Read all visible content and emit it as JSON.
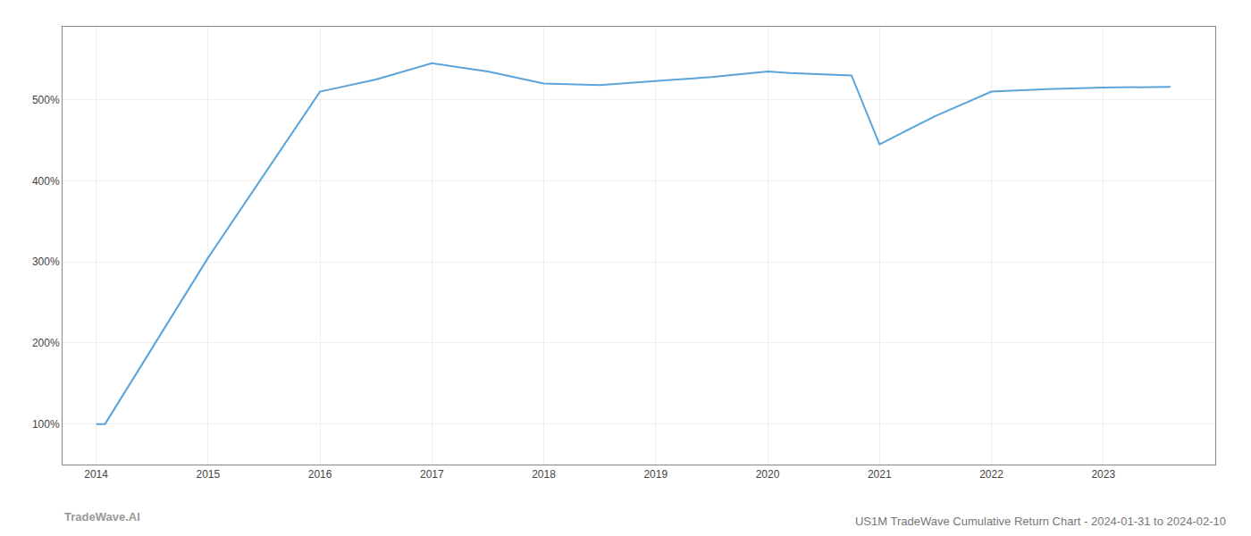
{
  "chart_data": {
    "type": "line",
    "title": "US1M TradeWave Cumulative Return Chart - 2024-01-31 to 2024-02-10",
    "annotations": [
      "TradeWave.AI"
    ],
    "x": [
      2014.0,
      2014.08,
      2015.0,
      2016.0,
      2016.5,
      2017.0,
      2017.5,
      2018.0,
      2018.5,
      2019.0,
      2019.5,
      2020.0,
      2020.2,
      2020.75,
      2021.0,
      2021.5,
      2022.0,
      2022.5,
      2023.0,
      2023.6
    ],
    "values": [
      100,
      100,
      305,
      510,
      525,
      545,
      535,
      520,
      518,
      523,
      528,
      535,
      533,
      530,
      445,
      480,
      510,
      513,
      515,
      516
    ],
    "color": "#5ba3d9",
    "xlim": [
      2013.7,
      2024.0
    ],
    "ylim": [
      50,
      590
    ],
    "xticks": [
      2014,
      2015,
      2016,
      2017,
      2018,
      2019,
      2020,
      2021,
      2022,
      2023
    ],
    "yticks": [
      {
        "value": 100,
        "label": "100%"
      },
      {
        "value": 200,
        "label": "200%"
      },
      {
        "value": 300,
        "label": "300%"
      },
      {
        "value": 400,
        "label": "400%"
      },
      {
        "value": 500,
        "label": "500%"
      }
    ],
    "grid": true
  }
}
